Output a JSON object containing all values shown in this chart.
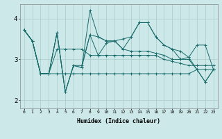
{
  "bg_color": "#cce8e8",
  "grid_color": "#aacccc",
  "line_color": "#1a6b6b",
  "xlabel": "Humidex (Indice chaleur)",
  "xlim": [
    -0.5,
    23.5
  ],
  "ylim": [
    1.8,
    4.35
  ],
  "xtick_labels": [
    "0",
    "1",
    "2",
    "3",
    "4",
    "5",
    "6",
    "7",
    "8",
    "9",
    "10",
    "11",
    "12",
    "13",
    "14",
    "15",
    "16",
    "17",
    "18",
    "19",
    "20",
    "21",
    "22",
    "23"
  ],
  "ytick_values": [
    2,
    3,
    4
  ],
  "series": [
    [
      3.72,
      3.45,
      2.65,
      2.65,
      2.65,
      2.65,
      2.65,
      2.65,
      2.65,
      2.65,
      2.65,
      2.65,
      2.65,
      2.65,
      2.65,
      2.65,
      2.65,
      2.65,
      2.65,
      2.65,
      2.65,
      2.75,
      2.75,
      2.75
    ],
    [
      3.72,
      3.45,
      2.65,
      2.65,
      3.25,
      3.25,
      3.25,
      3.25,
      3.1,
      3.1,
      3.1,
      3.1,
      3.1,
      3.1,
      3.1,
      3.1,
      3.1,
      3.0,
      2.95,
      2.9,
      2.85,
      2.85,
      2.85,
      2.85
    ],
    [
      3.72,
      3.45,
      2.65,
      2.65,
      3.65,
      2.2,
      2.85,
      2.85,
      3.6,
      3.55,
      3.45,
      3.45,
      3.25,
      3.2,
      3.2,
      3.2,
      3.15,
      3.1,
      3.0,
      3.0,
      3.0,
      2.75,
      2.45,
      2.75
    ],
    [
      3.72,
      3.45,
      2.65,
      2.65,
      3.65,
      2.2,
      2.85,
      2.8,
      3.6,
      3.1,
      3.4,
      3.45,
      3.25,
      3.55,
      3.9,
      3.9,
      3.55,
      3.35,
      3.25,
      3.2,
      3.05,
      3.35,
      3.35,
      2.75
    ],
    [
      3.72,
      3.45,
      2.65,
      2.65,
      3.65,
      2.2,
      2.85,
      2.8,
      4.2,
      3.55,
      3.45,
      3.45,
      3.5,
      3.55,
      3.9,
      3.9,
      3.55,
      3.35,
      3.25,
      3.0,
      3.05,
      2.75,
      2.45,
      2.75
    ]
  ]
}
